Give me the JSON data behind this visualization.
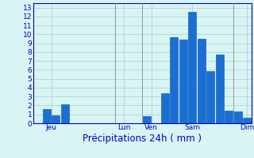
{
  "bar_values": [
    0,
    1.6,
    0.9,
    2.1,
    0,
    0,
    0,
    0,
    0,
    0,
    0,
    0,
    0.8,
    0,
    3.4,
    9.7,
    9.4,
    12.5,
    9.5,
    5.9,
    7.7,
    1.4,
    1.3,
    0.6
  ],
  "bar_color": "#1a6fd4",
  "bar_edge_color": "#0a4faa",
  "background_color": "#d8f5f5",
  "grid_color": "#aacccc",
  "axis_color": "#0000cc",
  "xlabel": "Précipitations 24h ( mm )",
  "xlabel_color": "#0000cc",
  "yticks": [
    0,
    1,
    2,
    3,
    4,
    5,
    6,
    7,
    8,
    9,
    10,
    11,
    12,
    13
  ],
  "ylim": [
    0,
    13.5
  ],
  "day_labels": [
    "Jeu",
    "Lun",
    "Ven",
    "Sam",
    "Dim"
  ],
  "day_positions": [
    1.5,
    9.5,
    12.5,
    17.0,
    23.0
  ],
  "vline_positions": [
    9,
    12,
    22
  ],
  "tick_fontsize": 6.5,
  "label_fontsize": 8.5
}
